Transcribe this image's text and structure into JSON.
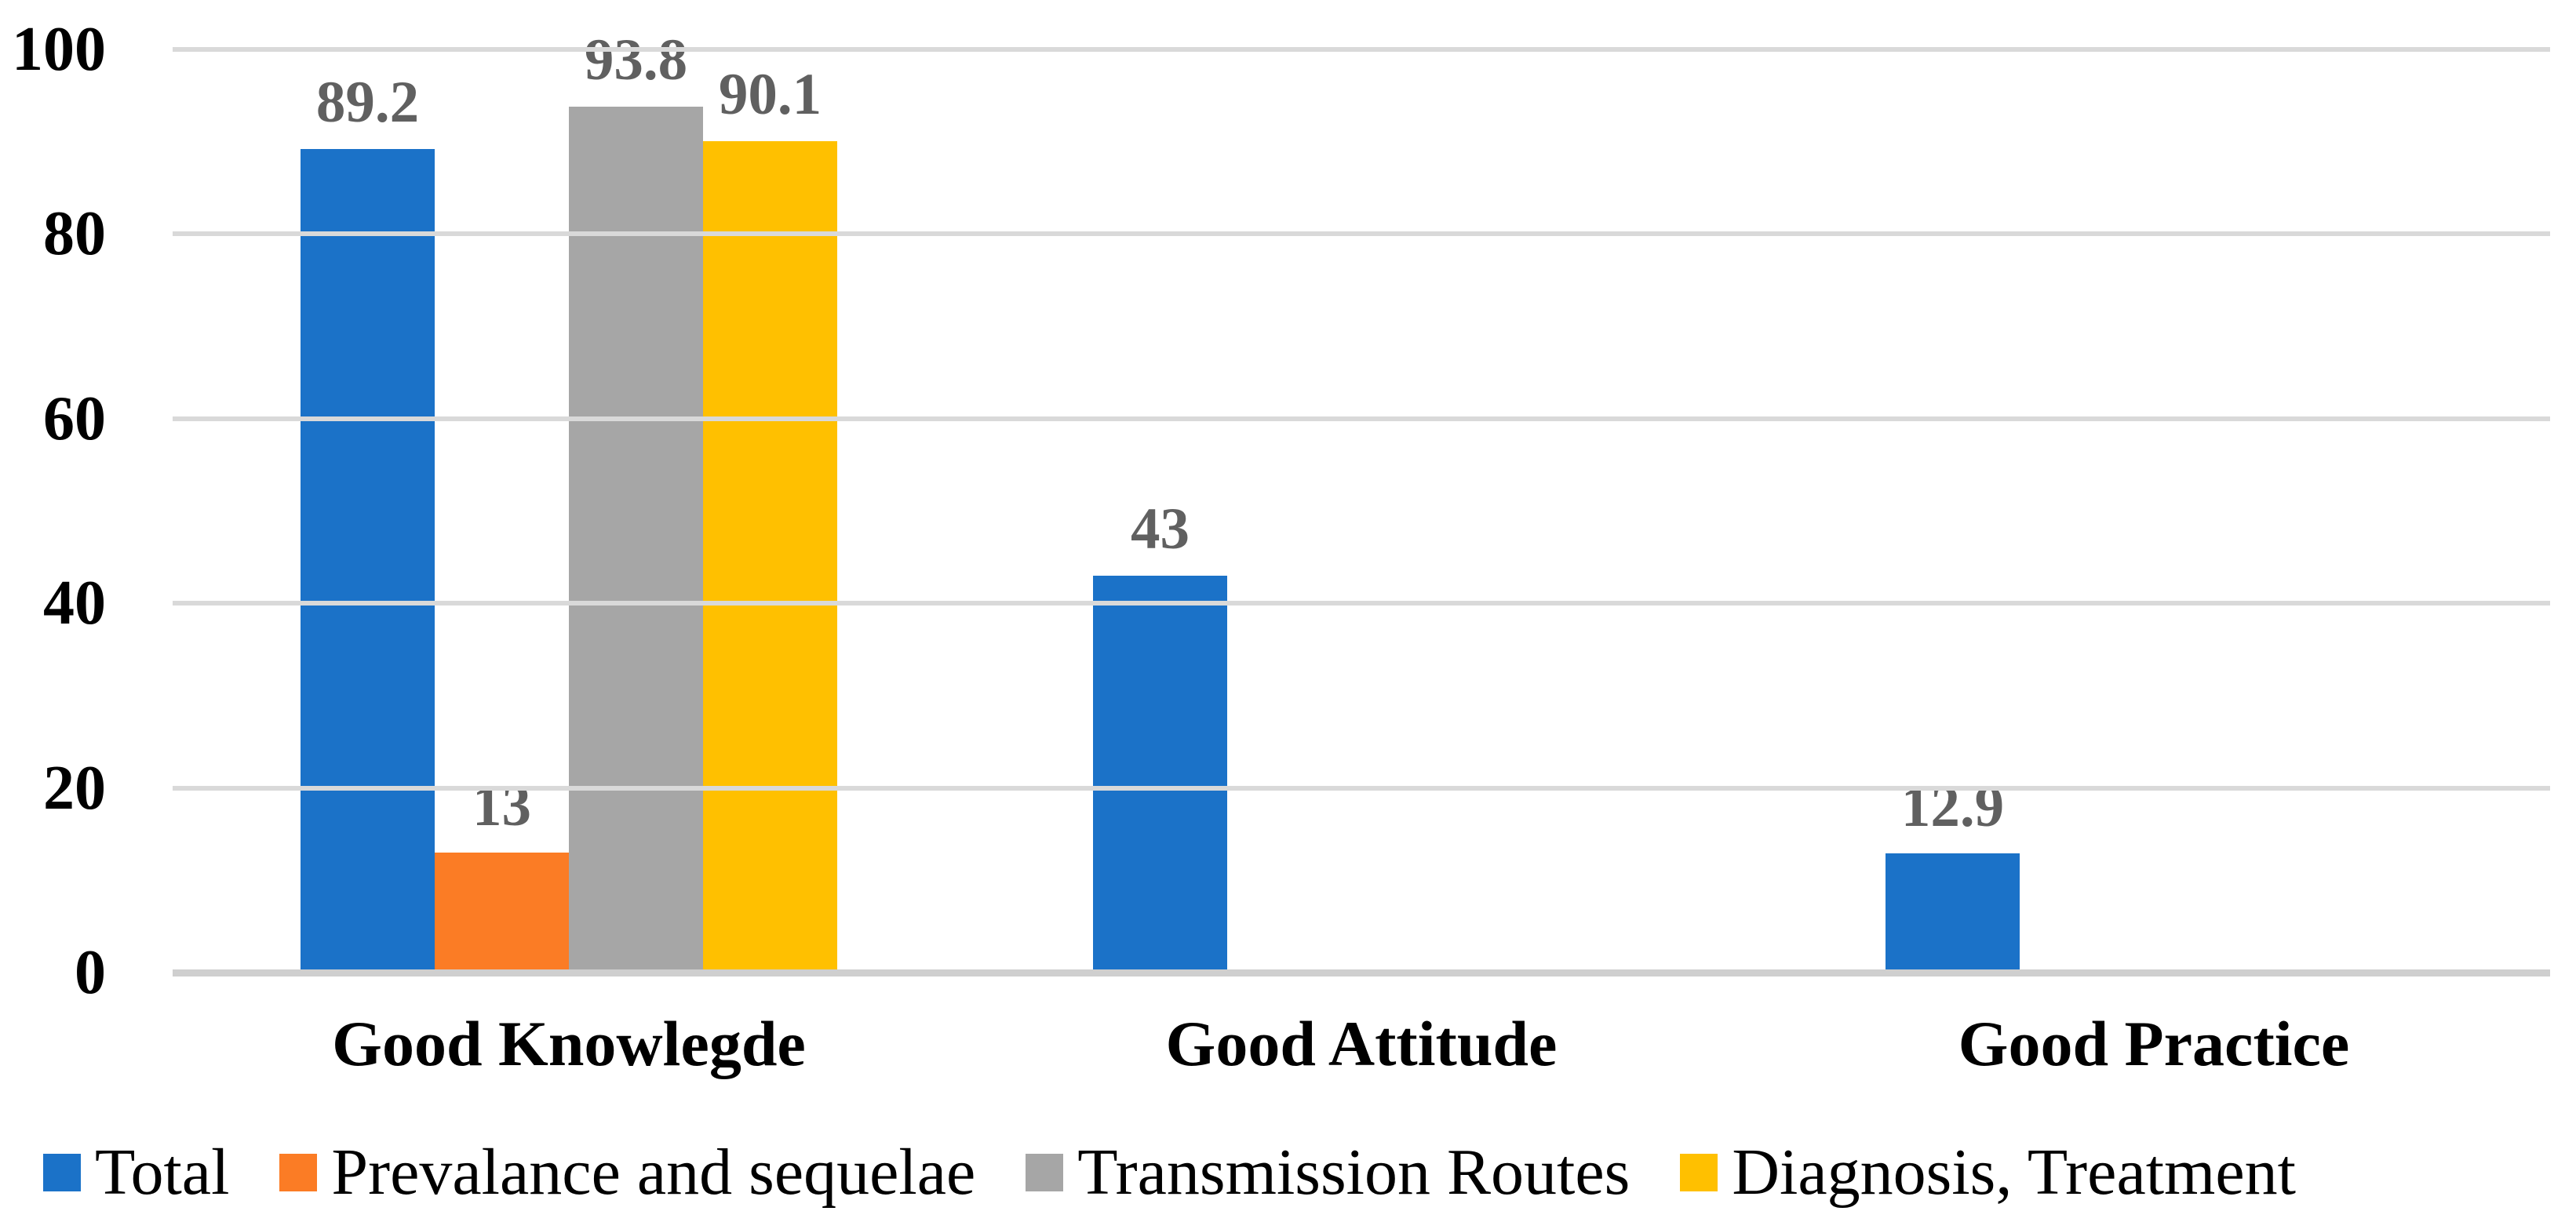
{
  "chart_data": {
    "type": "bar",
    "title": "",
    "categories": [
      "Good Knowlegde",
      "Good Attitude",
      "Good Practice"
    ],
    "series": [
      {
        "key": "total",
        "name": "Total",
        "color": "#1B72C8",
        "values": [
          89.2,
          43,
          12.9
        ]
      },
      {
        "key": "prevalance-and-sequelae",
        "name": "Prevalance and sequelae",
        "color": "#FB7C25",
        "values": [
          13,
          null,
          null
        ]
      },
      {
        "key": "transmission-routes",
        "name": "Transmission Routes",
        "color": "#A6A6A6",
        "values": [
          93.8,
          null,
          null
        ]
      },
      {
        "key": "diagnosis-treatment",
        "name": "Diagnosis, Treatment",
        "color": "#FFC000",
        "values": [
          90.1,
          null,
          null
        ]
      }
    ],
    "value_labels": [
      [
        "89.2",
        "43",
        "12.9"
      ],
      [
        "13",
        null,
        null
      ],
      [
        "93.8",
        null,
        null
      ],
      [
        "90.1",
        null,
        null
      ]
    ],
    "y_axis": {
      "min": 0,
      "max": 100,
      "ticks": [
        0,
        20,
        40,
        60,
        80,
        100
      ]
    },
    "xlabel": "",
    "ylabel": "",
    "grid": true,
    "legend_position": "bottom"
  },
  "style": {
    "background": "#FFFFFF",
    "gridline_color": "#D9D9D9",
    "axis_line_color": "#CFCFCF",
    "value_label_color": "#606060",
    "text_color": "#000000"
  }
}
